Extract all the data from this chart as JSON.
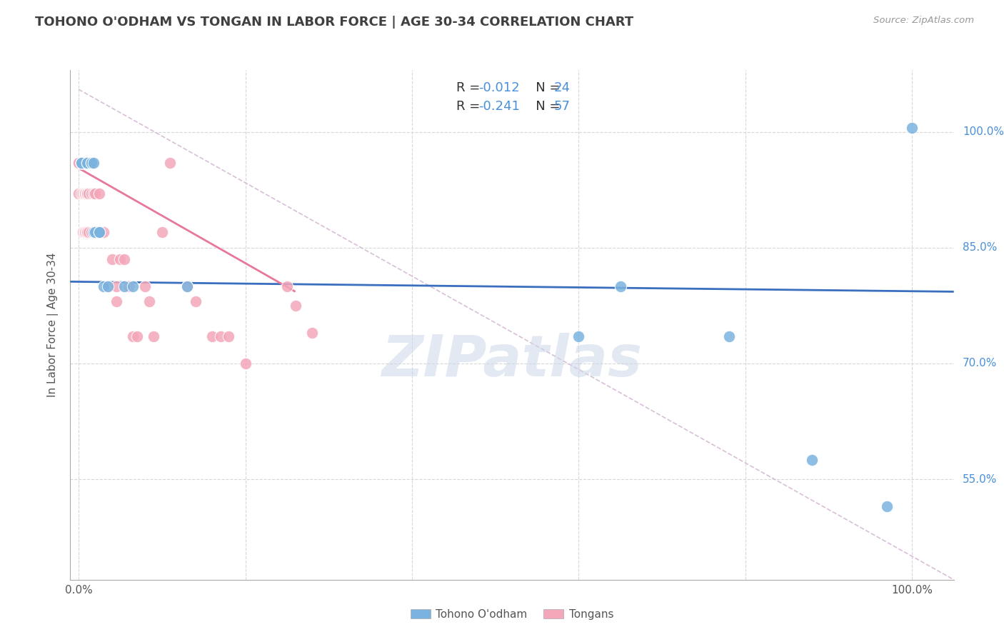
{
  "title": "TOHONO O'ODHAM VS TONGAN IN LABOR FORCE | AGE 30-34 CORRELATION CHART",
  "source": "Source: ZipAtlas.com",
  "ylabel": "In Labor Force | Age 30-34",
  "watermark": "ZIPatlas",
  "blue_label": "Tohono O'odham",
  "pink_label": "Tongans",
  "legend_blue_r": "-0.012",
  "legend_blue_n": "24",
  "legend_pink_r": "-0.241",
  "legend_pink_n": "57",
  "x_tick_labels": [
    "0.0%",
    "",
    "",
    "",
    "",
    "100.0%"
  ],
  "y_ticks": [
    0.55,
    0.7,
    0.85,
    1.0
  ],
  "y_tick_labels": [
    "55.0%",
    "70.0%",
    "85.0%",
    "100.0%"
  ],
  "xlim": [
    -0.01,
    1.05
  ],
  "ylim": [
    0.42,
    1.08
  ],
  "blue_color": "#7ab3df",
  "pink_color": "#f4a7b9",
  "blue_line_color": "#3a6fbf",
  "pink_line_color": "#e8789a",
  "dashed_line_color": "#d4b8d4",
  "grid_color": "#d3d3d3",
  "right_tick_color": "#4a90d9",
  "title_color": "#404040",
  "blue_x": [
    0.003,
    0.003,
    0.003,
    0.003,
    0.01,
    0.01,
    0.015,
    0.015,
    0.018,
    0.018,
    0.02,
    0.025,
    0.025,
    0.03,
    0.035,
    0.055,
    0.065,
    0.13,
    0.6,
    0.65,
    0.78,
    0.88,
    0.97,
    1.0
  ],
  "blue_y": [
    0.96,
    0.96,
    0.96,
    0.96,
    0.96,
    0.96,
    0.96,
    0.96,
    0.96,
    0.87,
    0.87,
    0.87,
    0.87,
    0.8,
    0.8,
    0.8,
    0.8,
    0.8,
    0.735,
    0.8,
    0.735,
    0.575,
    0.515,
    1.005
  ],
  "pink_x": [
    0.0,
    0.0,
    0.0,
    0.0,
    0.0,
    0.003,
    0.003,
    0.003,
    0.005,
    0.005,
    0.005,
    0.007,
    0.007,
    0.007,
    0.008,
    0.008,
    0.008,
    0.009,
    0.009,
    0.01,
    0.01,
    0.01,
    0.012,
    0.012,
    0.015,
    0.015,
    0.018,
    0.018,
    0.02,
    0.02,
    0.022,
    0.025,
    0.025,
    0.03,
    0.035,
    0.04,
    0.045,
    0.045,
    0.05,
    0.055,
    0.06,
    0.065,
    0.07,
    0.08,
    0.085,
    0.09,
    0.1,
    0.11,
    0.13,
    0.14,
    0.16,
    0.17,
    0.18,
    0.2,
    0.25,
    0.26,
    0.28
  ],
  "pink_y": [
    0.96,
    0.96,
    0.96,
    0.96,
    0.92,
    0.96,
    0.96,
    0.92,
    0.96,
    0.92,
    0.87,
    0.96,
    0.92,
    0.87,
    0.96,
    0.92,
    0.87,
    0.92,
    0.87,
    0.96,
    0.92,
    0.87,
    0.92,
    0.87,
    0.92,
    0.87,
    0.92,
    0.87,
    0.92,
    0.87,
    0.87,
    0.92,
    0.87,
    0.87,
    0.8,
    0.835,
    0.8,
    0.78,
    0.835,
    0.835,
    0.8,
    0.735,
    0.735,
    0.8,
    0.78,
    0.735,
    0.87,
    0.96,
    0.8,
    0.78,
    0.735,
    0.735,
    0.735,
    0.7,
    0.8,
    0.775,
    0.74
  ],
  "blue_line_x": [
    -0.01,
    1.05
  ],
  "blue_line_y": [
    0.806,
    0.793
  ],
  "pink_line_x": [
    0.0,
    0.26
  ],
  "pink_line_y": [
    0.953,
    0.793
  ],
  "dashed_line_x": [
    0.0,
    1.05
  ],
  "dashed_line_y": [
    1.055,
    0.42
  ]
}
